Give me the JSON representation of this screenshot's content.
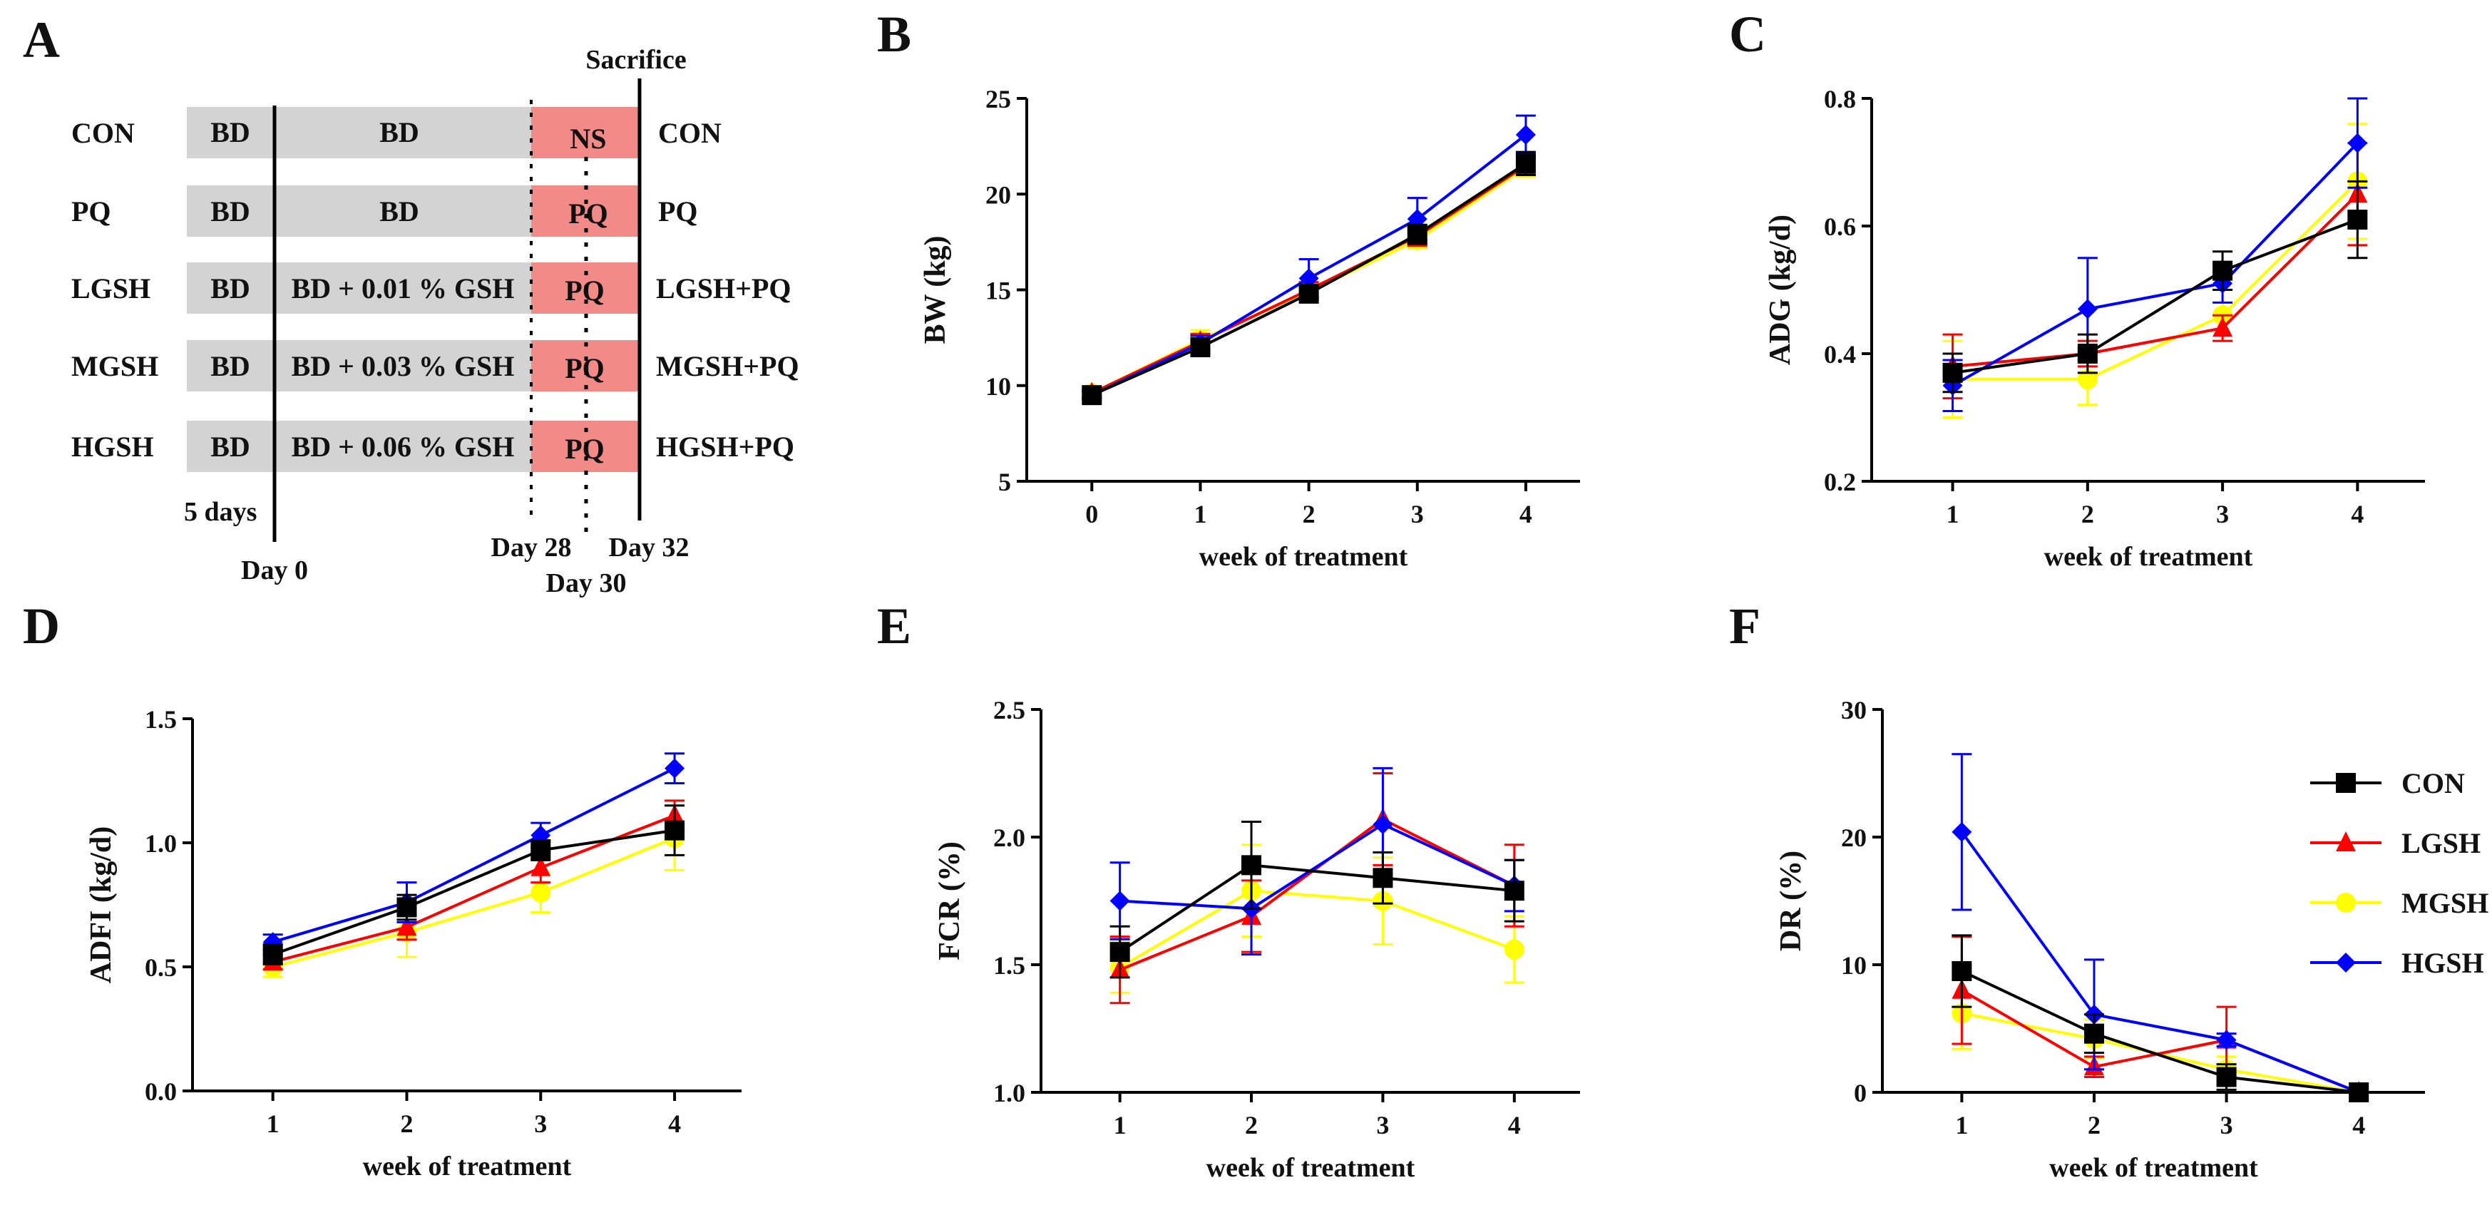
{
  "panel_letters": [
    "A",
    "B",
    "C",
    "D",
    "E",
    "F"
  ],
  "schematic": {
    "groups": [
      {
        "name": "CON",
        "adapt": "BD",
        "treatment": "BD",
        "challenge": "NS",
        "end": "CON"
      },
      {
        "name": "PQ",
        "adapt": "BD",
        "treatment": "BD",
        "challenge": "PQ",
        "end": "PQ"
      },
      {
        "name": "LGSH",
        "adapt": "BD",
        "treatment": "BD + 0.01 % GSH",
        "challenge": "PQ",
        "end": "LGSH+PQ"
      },
      {
        "name": "MGSH",
        "adapt": "BD",
        "treatment": "BD + 0.03 % GSH",
        "challenge": "PQ",
        "end": "MGSH+PQ"
      },
      {
        "name": "HGSH",
        "adapt": "BD",
        "treatment": "BD + 0.06 % GSH",
        "challenge": "PQ",
        "end": "HGSH+PQ"
      }
    ],
    "sacrifice_label": "Sacrifice",
    "adapt_period": "5 days",
    "day_labels": {
      "day0": "Day 0",
      "day28": "Day 28",
      "day30": "Day 30",
      "day32": "Day 32"
    },
    "colors": {
      "bar": "#d3d3d3",
      "challenge": "#f28b88"
    }
  },
  "series_colors": {
    "CON": "#000000",
    "LGSH": "#ff0000",
    "MGSH": "#ffff00",
    "HGSH": "#0000ff"
  },
  "legend": [
    {
      "name": "CON",
      "marker": "square"
    },
    {
      "name": "LGSH",
      "marker": "triangle-up"
    },
    {
      "name": "MGSH",
      "marker": "circle"
    },
    {
      "name": "HGSH",
      "marker": "diamond"
    }
  ],
  "chart_data": [
    {
      "panel": "B",
      "type": "line",
      "xlabel": "week of treatment",
      "ylabel": "BW (kg)",
      "x": [
        0,
        1,
        2,
        3,
        4
      ],
      "xlim": [
        -0.6,
        4.5
      ],
      "ylim": [
        5,
        25
      ],
      "yticks": [
        5,
        10,
        15,
        20,
        25
      ],
      "ytick_labels": [
        "5",
        "10",
        "15",
        "20",
        "25"
      ],
      "series": [
        {
          "name": "CON",
          "values": [
            9.5,
            12,
            14.8,
            17.9,
            21.6
          ],
          "errors": [
            0.2,
            0.3,
            0.3,
            0.5,
            0.6
          ]
        },
        {
          "name": "LGSH",
          "values": [
            9.6,
            12.3,
            15,
            17.8,
            21.5
          ],
          "errors": [
            0.2,
            0.4,
            0.4,
            0.5,
            0.5
          ]
        },
        {
          "name": "MGSH",
          "values": [
            9.6,
            12.4,
            14.9,
            17.6,
            21.4
          ],
          "errors": [
            0.3,
            0.5,
            0.4,
            0.4,
            0.5
          ]
        },
        {
          "name": "HGSH",
          "values": [
            9.5,
            12.2,
            15.6,
            18.7,
            23.1
          ],
          "errors": [
            0.2,
            0.4,
            1.0,
            1.1,
            1.0
          ]
        }
      ]
    },
    {
      "panel": "C",
      "type": "line",
      "xlabel": "week of treatment",
      "ylabel": "ADG (kg/d)",
      "x": [
        1,
        2,
        3,
        4
      ],
      "xlim": [
        0.4,
        4.5
      ],
      "ylim": [
        0.2,
        0.8
      ],
      "yticks": [
        0.2,
        0.4,
        0.6,
        0.8
      ],
      "ytick_labels": [
        "0.2",
        "0.4",
        "0.6",
        "0.8"
      ],
      "series": [
        {
          "name": "CON",
          "values": [
            0.37,
            0.4,
            0.53,
            0.61
          ],
          "errors": [
            0.03,
            0.03,
            0.03,
            0.06
          ]
        },
        {
          "name": "LGSH",
          "values": [
            0.38,
            0.4,
            0.44,
            0.65
          ],
          "errors": [
            0.05,
            0.02,
            0.02,
            0.08
          ]
        },
        {
          "name": "MGSH",
          "values": [
            0.36,
            0.36,
            0.46,
            0.67
          ],
          "errors": [
            0.06,
            0.04,
            0.04,
            0.09
          ]
        },
        {
          "name": "HGSH",
          "values": [
            0.35,
            0.47,
            0.51,
            0.73
          ],
          "errors": [
            0.04,
            0.08,
            0.03,
            0.07
          ]
        }
      ]
    },
    {
      "panel": "D",
      "type": "line",
      "xlabel": "week of treatment",
      "ylabel": "ADFI (kg/d)",
      "x": [
        1,
        2,
        3,
        4
      ],
      "xlim": [
        0.4,
        4.5
      ],
      "ylim": [
        0,
        1.5
      ],
      "yticks": [
        0,
        0.5,
        1.0,
        1.5
      ],
      "ytick_labels": [
        "0.0",
        "0.5",
        "1.0",
        "1.5"
      ],
      "series": [
        {
          "name": "CON",
          "values": [
            0.55,
            0.74,
            0.97,
            1.05
          ],
          "errors": [
            0.04,
            0.05,
            0.04,
            0.1
          ]
        },
        {
          "name": "LGSH",
          "values": [
            0.52,
            0.66,
            0.9,
            1.11
          ],
          "errors": [
            0.03,
            0.05,
            0.06,
            0.06
          ]
        },
        {
          "name": "MGSH",
          "values": [
            0.5,
            0.64,
            0.8,
            1.02
          ],
          "errors": [
            0.04,
            0.1,
            0.08,
            0.13
          ]
        },
        {
          "name": "HGSH",
          "values": [
            0.6,
            0.76,
            1.03,
            1.3
          ],
          "errors": [
            0.03,
            0.08,
            0.05,
            0.06
          ]
        }
      ]
    },
    {
      "panel": "E",
      "type": "line",
      "xlabel": "week of treatment",
      "ylabel": "FCR (%)",
      "x": [
        1,
        2,
        3,
        4
      ],
      "xlim": [
        0.4,
        4.5
      ],
      "ylim": [
        1.0,
        2.5
      ],
      "yticks": [
        1.0,
        1.5,
        2.0,
        2.5
      ],
      "ytick_labels": [
        "1.0",
        "1.5",
        "2.0",
        "2.5"
      ],
      "series": [
        {
          "name": "CON",
          "values": [
            1.55,
            1.89,
            1.84,
            1.79
          ],
          "errors": [
            0.1,
            0.17,
            0.1,
            0.12
          ]
        },
        {
          "name": "LGSH",
          "values": [
            1.48,
            1.69,
            2.07,
            1.81
          ],
          "errors": [
            0.13,
            0.14,
            0.18,
            0.16
          ]
        },
        {
          "name": "MGSH",
          "values": [
            1.49,
            1.79,
            1.75,
            1.56
          ],
          "errors": [
            0.1,
            0.18,
            0.17,
            0.13
          ]
        },
        {
          "name": "HGSH",
          "values": [
            1.75,
            1.72,
            2.05,
            1.81
          ],
          "errors": [
            0.15,
            0.18,
            0.22,
            0.1
          ]
        }
      ]
    },
    {
      "panel": "F",
      "type": "line",
      "xlabel": "week of treatment",
      "ylabel": "DR (%)",
      "x": [
        1,
        2,
        3,
        4
      ],
      "xlim": [
        0.4,
        4.5
      ],
      "ylim": [
        0,
        30
      ],
      "yticks": [
        0,
        10,
        20,
        30
      ],
      "ytick_labels": [
        "0",
        "10",
        "20",
        "30"
      ],
      "series": [
        {
          "name": "CON",
          "values": [
            9.5,
            4.6,
            1.2,
            0
          ],
          "errors": [
            2.8,
            1.5,
            1.0,
            0
          ]
        },
        {
          "name": "LGSH",
          "values": [
            8,
            2,
            4.1,
            0
          ],
          "errors": [
            4.2,
            0.8,
            2.6,
            0
          ]
        },
        {
          "name": "MGSH",
          "values": [
            6.2,
            4.2,
            1.8,
            0
          ],
          "errors": [
            2.8,
            1.5,
            1.0,
            0
          ]
        },
        {
          "name": "HGSH",
          "values": [
            20.4,
            6.1,
            4.1,
            0
          ],
          "errors": [
            6.1,
            4.3,
            0.5,
            0
          ]
        }
      ]
    }
  ]
}
